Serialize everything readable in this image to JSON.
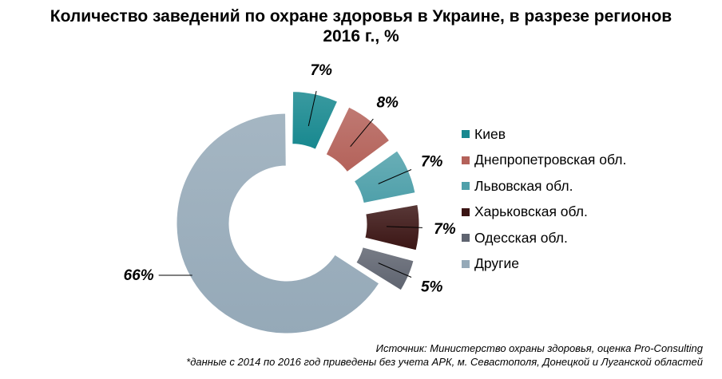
{
  "title_line1": "Количество заведений по охране здоровья в Украине, в разрезе регионов",
  "title_line2": "2016 г., %",
  "chart_data": {
    "type": "pie",
    "variant": "donut, exploded slices",
    "categories": [
      "Киев",
      "Днепропетровская обл.",
      "Львовская обл.",
      "Харьковская обл.",
      "Одесская обл.",
      "Другие"
    ],
    "values": [
      7,
      8,
      7,
      7,
      5,
      66
    ],
    "labels": [
      "7%",
      "8%",
      "7%",
      "7%",
      "5%",
      "66%"
    ],
    "colors": [
      "#17888f",
      "#b4625a",
      "#4fa0aa",
      "#3b1514",
      "#5f6470",
      "#95a9b8"
    ],
    "legend_position": "right"
  },
  "source": "Источник: Министерство охраны здоровья, оценка Pro-Consulting",
  "note": "*данные с 2014 по 2016 год приведены без учета АРК, м. Севастополя, Донецкой и Луганской областей"
}
